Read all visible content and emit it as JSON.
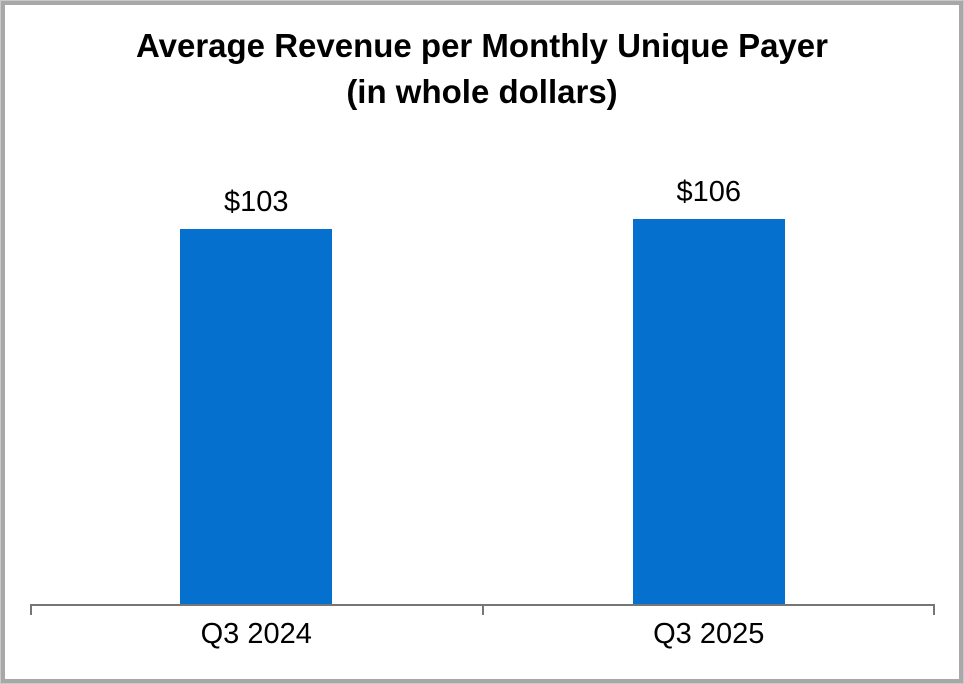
{
  "chart_data": {
    "type": "bar",
    "title": "Average Revenue per Monthly Unique Payer",
    "subtitle": "(in whole dollars)",
    "categories": [
      "Q3 2024",
      "Q3 2025"
    ],
    "values": [
      103,
      106
    ],
    "value_labels": [
      "$103",
      "$106"
    ],
    "xlabel": "",
    "ylabel": "",
    "ylim": [
      0,
      110
    ],
    "grid": false,
    "legend": false,
    "bar_color": "#0670ce",
    "axis_color": "#767676",
    "axis_ticks": [
      "left-end",
      "center",
      "right-end"
    ],
    "frame_border_color": "#a8a8a8"
  }
}
